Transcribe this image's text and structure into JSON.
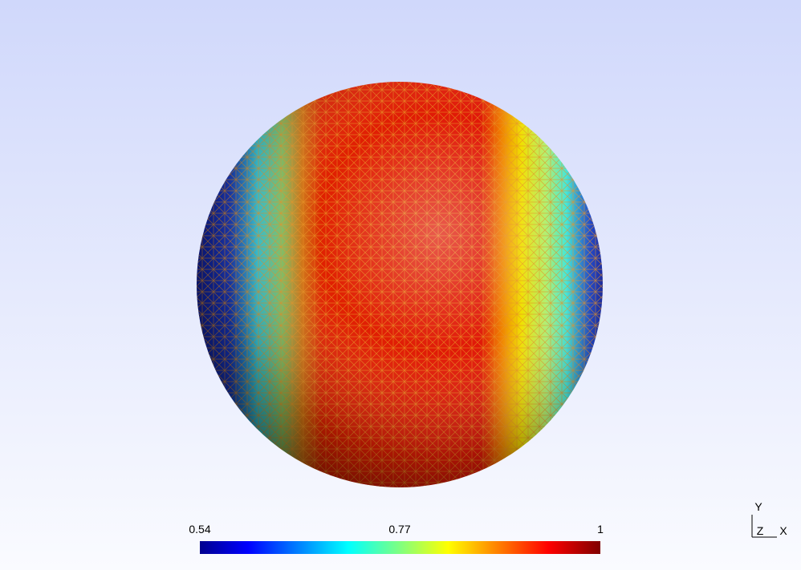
{
  "colorbar": {
    "min": 0.54,
    "mid": 0.77,
    "max": 1
  },
  "axes": {
    "y": "Y",
    "z": "Z",
    "x": "X"
  }
}
